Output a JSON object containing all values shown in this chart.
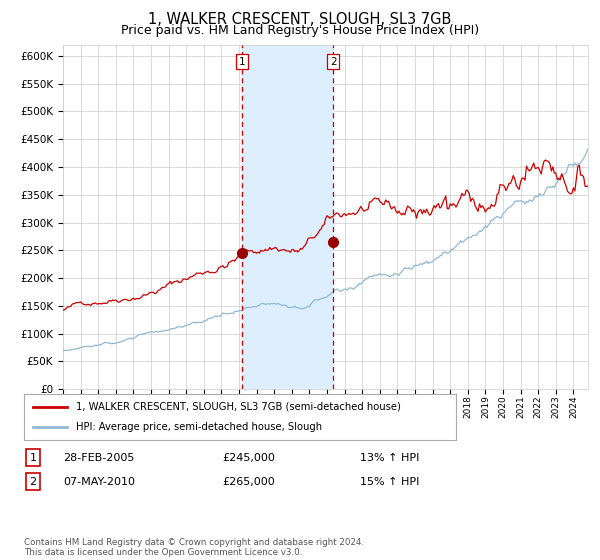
{
  "title": "1, WALKER CRESCENT, SLOUGH, SL3 7GB",
  "subtitle": "Price paid vs. HM Land Registry's House Price Index (HPI)",
  "ylim": [
    0,
    620000
  ],
  "yticks": [
    0,
    50000,
    100000,
    150000,
    200000,
    250000,
    300000,
    350000,
    400000,
    450000,
    500000,
    550000,
    600000
  ],
  "xlim_start": 1995,
  "xlim_end": 2024.83,
  "line1_color": "#cc0000",
  "line2_color": "#92b8d4",
  "marker_color": "#990000",
  "vline_color": "#cc0000",
  "shade_color": "#ddeeff",
  "legend_line1": "1, WALKER CRESCENT, SLOUGH, SL3 7GB (semi-detached house)",
  "legend_line2": "HPI: Average price, semi-detached house, Slough",
  "transaction1_date": "28-FEB-2005",
  "transaction1_price": 245000,
  "transaction1_hpi": "13% ↑ HPI",
  "transaction1_label": "1",
  "transaction1_year": 2005.17,
  "transaction2_date": "07-MAY-2010",
  "transaction2_price": 265000,
  "transaction2_hpi": "15% ↑ HPI",
  "transaction2_label": "2",
  "transaction2_year": 2010.36,
  "footer": "Contains HM Land Registry data © Crown copyright and database right 2024.\nThis data is licensed under the Open Government Licence v3.0.",
  "background_color": "#ffffff",
  "grid_color": "#cccccc",
  "title_fontsize": 10.5,
  "subtitle_fontsize": 9,
  "axis_fontsize": 8
}
